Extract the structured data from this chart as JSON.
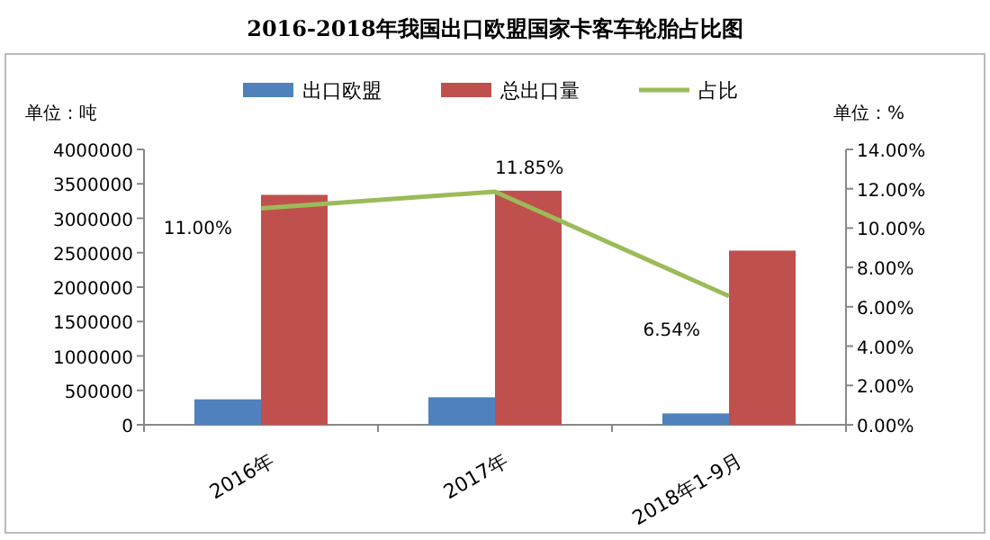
{
  "chart_data": {
    "type": "bar",
    "title": "2016-2018年我国出口欧盟国家卡客车轮胎占比图",
    "ylabel": "单位：吨",
    "y2label": "单位：%",
    "categories": [
      "2016年",
      "2017年",
      "2018年1-9月"
    ],
    "series": [
      {
        "name": "出口欧盟",
        "color": "#4f81bd",
        "values": [
          370000,
          400000,
          165000
        ]
      },
      {
        "name": "总出口量",
        "color": "#c0504d",
        "values": [
          3340000,
          3400000,
          2530000
        ]
      },
      {
        "name": "占比",
        "type": "line",
        "axis": "y2",
        "color": "#9bbb59",
        "values": [
          11.0,
          11.85,
          6.54
        ],
        "value_labels": [
          "11.00%",
          "11.85%",
          "6.54%"
        ]
      }
    ],
    "ylim": [
      0,
      4000000
    ],
    "yticks": [
      0,
      500000,
      1000000,
      1500000,
      2000000,
      2500000,
      3000000,
      3500000,
      4000000
    ],
    "y2lim": [
      0,
      14
    ],
    "y2ticks": [
      {
        "value": 0,
        "label": "0.00%"
      },
      {
        "value": 2,
        "label": "2.00%"
      },
      {
        "value": 4,
        "label": "4.00%"
      },
      {
        "value": 6,
        "label": "6.00%"
      },
      {
        "value": 8,
        "label": "8.00%"
      },
      {
        "value": 10,
        "label": "10.00%"
      },
      {
        "value": 12,
        "label": "12.00%"
      },
      {
        "value": 14,
        "label": "14.00%"
      }
    ],
    "legend": "top",
    "grid": false
  }
}
